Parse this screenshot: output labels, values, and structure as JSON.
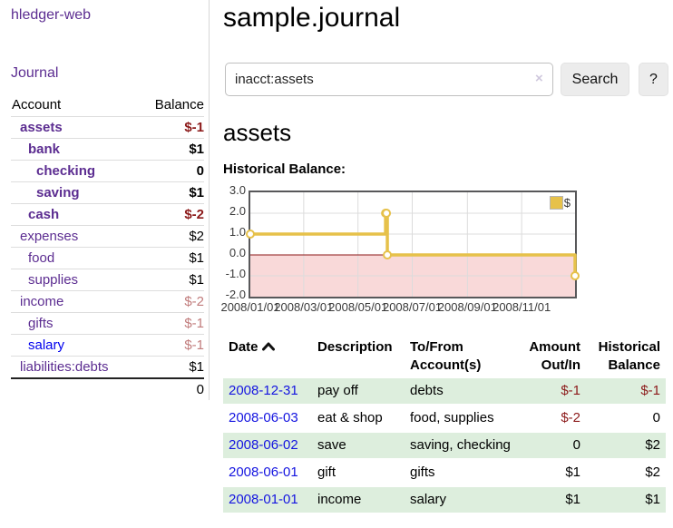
{
  "app_title": "hledger-web",
  "sidebar": {
    "journal_link": "Journal",
    "header": {
      "account": "Account",
      "balance": "Balance"
    },
    "accounts": [
      {
        "name": "assets",
        "balance": "$-1",
        "indent": 0,
        "bold": true,
        "balance_tone": "strong-negative"
      },
      {
        "name": "bank",
        "balance": "$1",
        "indent": 1,
        "bold": true,
        "balance_tone": "normal"
      },
      {
        "name": "checking",
        "balance": "0",
        "indent": 2,
        "bold": true,
        "balance_tone": "normal"
      },
      {
        "name": "saving",
        "balance": "$1",
        "indent": 2,
        "bold": true,
        "balance_tone": "normal"
      },
      {
        "name": "cash",
        "balance": "$-2",
        "indent": 1,
        "bold": true,
        "balance_tone": "strong-negative"
      },
      {
        "name": "expenses",
        "balance": "$2",
        "indent": 0,
        "bold": false,
        "balance_tone": "normal"
      },
      {
        "name": "food",
        "balance": "$1",
        "indent": 1,
        "bold": false,
        "balance_tone": "normal"
      },
      {
        "name": "supplies",
        "balance": "$1",
        "indent": 1,
        "bold": false,
        "balance_tone": "normal"
      },
      {
        "name": "income",
        "balance": "$-2",
        "indent": 0,
        "bold": false,
        "balance_tone": "soft-negative"
      },
      {
        "name": "gifts",
        "balance": "$-1",
        "indent": 1,
        "bold": false,
        "balance_tone": "soft-negative"
      },
      {
        "name": "salary",
        "balance": "$-1",
        "indent": 1,
        "bold": false,
        "balance_tone": "soft-negative",
        "link_style": "blue"
      },
      {
        "name": "liabilities:debts",
        "balance": "$1",
        "indent": 0,
        "bold": false,
        "balance_tone": "normal"
      }
    ],
    "total": "0"
  },
  "header": {
    "title": "sample.journal"
  },
  "search": {
    "value": "inacct:assets",
    "clear_icon": "×",
    "search_button": "Search",
    "help_button": "?"
  },
  "account_page": {
    "heading": "assets",
    "chart_label": "Historical Balance:"
  },
  "chart_data": {
    "type": "line",
    "step": true,
    "title": "Historical Balance",
    "legend": [
      "$"
    ],
    "legend_position": "top-right",
    "grid": true,
    "ylim": [
      -2.0,
      3.0
    ],
    "y_ticks": [
      "3.0",
      "2.0",
      "1.0",
      "0.0",
      "-1.0",
      "-2.0"
    ],
    "x_ticks": [
      "2008/01/01",
      "2008/03/01",
      "2008/05/01",
      "2008/07/01",
      "2008/09/01",
      "2008/11/01"
    ],
    "x_domain": [
      "2008-01-01",
      "2008-12-31"
    ],
    "negative_region_shaded": true,
    "series": [
      {
        "name": "$",
        "points": [
          {
            "x": "2008-01-01",
            "y": 1
          },
          {
            "x": "2008-06-01",
            "y": 2
          },
          {
            "x": "2008-06-02",
            "y": 2
          },
          {
            "x": "2008-06-03",
            "y": 0
          },
          {
            "x": "2008-12-31",
            "y": -1
          }
        ]
      }
    ],
    "colors": {
      "line": "#e6c14a",
      "marker_fill": "#ffffff",
      "negative_fill": "#f9d9d9",
      "zero_line": "#8c1717",
      "gridline": "#dcdcdc",
      "border": "#58585a"
    }
  },
  "register": {
    "headers": [
      {
        "label": "Date",
        "align": "left",
        "sorted": "asc"
      },
      {
        "label": "Description",
        "align": "left"
      },
      {
        "label": "To/From Account(s)",
        "align": "left"
      },
      {
        "label": "Amount Out/In",
        "align": "right"
      },
      {
        "label": "Historical Balance",
        "align": "right"
      }
    ],
    "rows": [
      {
        "date": "2008-12-31",
        "description": "pay off",
        "accounts": "debts",
        "amount": "$-1",
        "amount_negative": true,
        "balance": "$-1",
        "balance_negative": true,
        "shaded": true
      },
      {
        "date": "2008-06-03",
        "description": "eat & shop",
        "accounts": "food, supplies",
        "amount": "$-2",
        "amount_negative": true,
        "balance": "0",
        "balance_negative": false,
        "shaded": false
      },
      {
        "date": "2008-06-02",
        "description": "save",
        "accounts": "saving, checking",
        "amount": "0",
        "amount_negative": false,
        "balance": "$2",
        "balance_negative": false,
        "shaded": true
      },
      {
        "date": "2008-06-01",
        "description": "gift",
        "accounts": "gifts",
        "amount": "$1",
        "amount_negative": false,
        "balance": "$2",
        "balance_negative": false,
        "shaded": false
      },
      {
        "date": "2008-01-01",
        "description": "income",
        "accounts": "salary",
        "amount": "$1",
        "amount_negative": false,
        "balance": "$1",
        "balance_negative": false,
        "shaded": true
      }
    ]
  },
  "colors": {
    "link_purple": "#5c2d91",
    "link_blue": "#0000ee",
    "negative_strong": "#8c1a1a",
    "negative_soft": "#c17c7c",
    "row_green": "#ddeedd"
  }
}
